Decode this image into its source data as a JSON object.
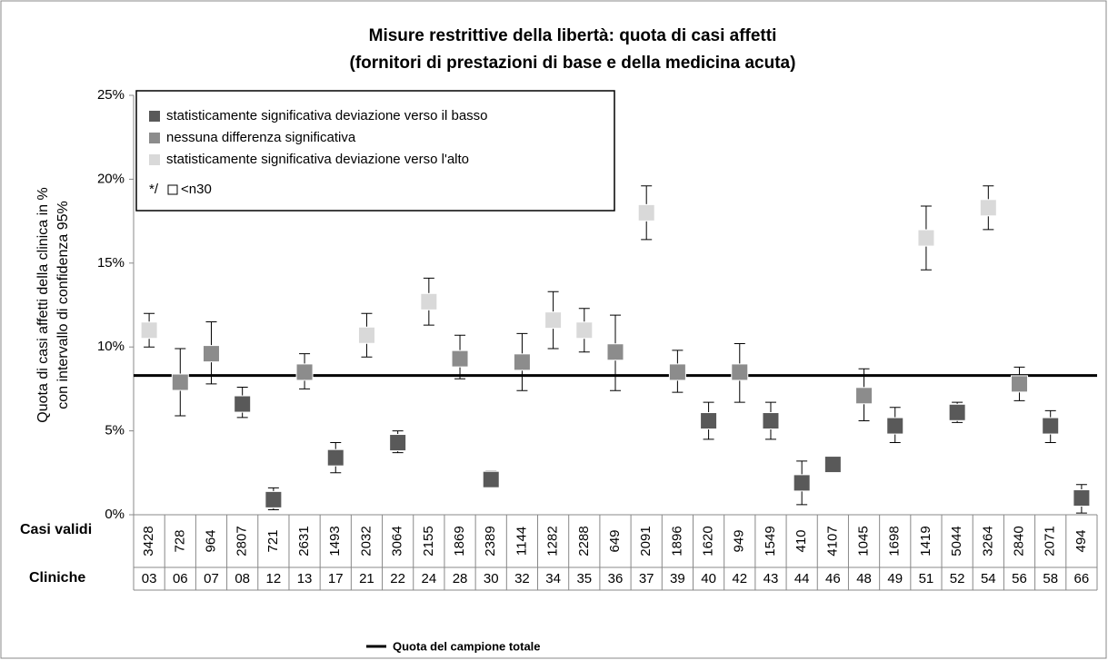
{
  "chart_data": {
    "type": "errorbar",
    "title": [
      "Misure restrittive della libertà: quota di casi affetti",
      "(fornitori di prestazioni di base e della medicina acuta)"
    ],
    "y_label": [
      "Quota di casi affetti della clinica in %",
      "con intervallo di confidenza 95%"
    ],
    "ylim": [
      0,
      25
    ],
    "yticks": [
      {
        "value": 0,
        "label": "0%"
      },
      {
        "value": 5,
        "label": "5%"
      },
      {
        "value": 10,
        "label": "10%"
      },
      {
        "value": 15,
        "label": "15%"
      },
      {
        "value": 20,
        "label": "20%"
      },
      {
        "value": 25,
        "label": "25%"
      }
    ],
    "row_labels": [
      "Casi validi",
      "Cliniche"
    ],
    "categories": [
      "03",
      "06",
      "07",
      "08",
      "12",
      "13",
      "17",
      "21",
      "22",
      "24",
      "28",
      "30",
      "32",
      "34",
      "35",
      "36",
      "37",
      "39",
      "40",
      "42",
      "43",
      "44",
      "46",
      "48",
      "49",
      "51",
      "52",
      "54",
      "56",
      "58",
      "66"
    ],
    "casi_validi": [
      "3428",
      "728",
      "964",
      "2807",
      "721",
      "2631",
      "1493",
      "2032",
      "3064",
      "2155",
      "1869",
      "2389",
      "1144",
      "1282",
      "2288",
      "649",
      "2091",
      "1896",
      "1620",
      "949",
      "1549",
      "410",
      "4107",
      "1045",
      "1698",
      "1419",
      "5044",
      "3264",
      "2840",
      "2071",
      "494"
    ],
    "series": [
      {
        "name": "statisticamente significativa deviazione verso il basso",
        "color": "#595959",
        "values": [
          null,
          null,
          null,
          6.6,
          0.9,
          null,
          3.4,
          null,
          4.3,
          null,
          null,
          2.1,
          null,
          null,
          null,
          null,
          null,
          null,
          5.6,
          null,
          5.6,
          1.9,
          3.0,
          null,
          5.3,
          null,
          6.1,
          null,
          null,
          5.3,
          1.0
        ],
        "low": [
          null,
          null,
          null,
          5.8,
          0.3,
          null,
          2.5,
          null,
          3.7,
          null,
          null,
          1.7,
          null,
          null,
          null,
          null,
          null,
          null,
          4.5,
          null,
          4.5,
          0.6,
          2.8,
          null,
          4.3,
          null,
          5.5,
          null,
          null,
          4.3,
          0.1
        ],
        "high": [
          null,
          null,
          null,
          7.6,
          1.6,
          null,
          4.3,
          null,
          5.0,
          null,
          null,
          2.6,
          null,
          null,
          null,
          null,
          null,
          null,
          6.7,
          null,
          6.7,
          3.2,
          3.4,
          null,
          6.4,
          null,
          6.7,
          null,
          null,
          6.2,
          1.8
        ]
      },
      {
        "name": "nessuna differenza significativa",
        "color": "#8c8c8c",
        "values": [
          null,
          7.9,
          9.6,
          null,
          null,
          8.5,
          null,
          null,
          null,
          null,
          9.3,
          null,
          9.1,
          null,
          null,
          9.7,
          null,
          8.5,
          null,
          8.5,
          null,
          null,
          null,
          7.1,
          null,
          null,
          null,
          null,
          7.8,
          null,
          null
        ],
        "low": [
          null,
          5.9,
          7.8,
          null,
          null,
          7.5,
          null,
          null,
          null,
          null,
          8.1,
          null,
          7.4,
          null,
          null,
          7.4,
          null,
          7.3,
          null,
          6.7,
          null,
          null,
          null,
          5.6,
          null,
          null,
          null,
          null,
          6.8,
          null,
          null
        ],
        "high": [
          null,
          9.9,
          11.5,
          null,
          null,
          9.6,
          null,
          null,
          null,
          null,
          10.7,
          null,
          10.8,
          null,
          null,
          11.9,
          null,
          9.8,
          null,
          10.2,
          null,
          null,
          null,
          8.7,
          null,
          null,
          null,
          null,
          8.8,
          null,
          null
        ]
      },
      {
        "name": "statisticamente significativa deviazione verso l'alto",
        "color": "#d9d9d9",
        "values": [
          11.0,
          null,
          null,
          null,
          null,
          null,
          null,
          10.7,
          null,
          12.7,
          null,
          null,
          null,
          11.6,
          11.0,
          null,
          18.0,
          null,
          null,
          null,
          null,
          null,
          null,
          null,
          null,
          16.5,
          null,
          18.3,
          null,
          null,
          null
        ],
        "low": [
          10.0,
          null,
          null,
          null,
          null,
          null,
          null,
          9.4,
          null,
          11.3,
          null,
          null,
          null,
          9.9,
          9.7,
          null,
          16.4,
          null,
          null,
          null,
          null,
          null,
          null,
          null,
          null,
          14.6,
          null,
          17.0,
          null,
          null,
          null
        ],
        "high": [
          12.0,
          null,
          null,
          null,
          null,
          null,
          null,
          12.0,
          null,
          14.1,
          null,
          null,
          null,
          13.3,
          12.3,
          null,
          19.6,
          null,
          null,
          null,
          null,
          null,
          null,
          null,
          null,
          18.4,
          null,
          19.6,
          null,
          null,
          null
        ]
      }
    ],
    "legend_note": [
      "*/",
      "<n30"
    ],
    "reference": {
      "name": "Quota del campione totale",
      "value": 8.3
    }
  }
}
